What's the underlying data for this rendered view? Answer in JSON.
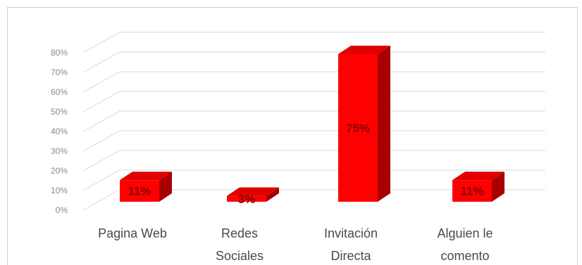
{
  "chart_data": {
    "type": "bar",
    "categories": [
      [
        "Pagina Web"
      ],
      [
        "Redes",
        "Sociales"
      ],
      [
        "Invitación",
        "Directa"
      ],
      [
        "Alguien le",
        "comento"
      ]
    ],
    "values": [
      11,
      3,
      75,
      11
    ],
    "data_labels": [
      "11%",
      "3%",
      "75%",
      "11%"
    ],
    "y_ticks": [
      "0%",
      "10%",
      "20%",
      "30%",
      "40%",
      "50%",
      "60%",
      "70%",
      "80%"
    ],
    "ylim": [
      0,
      80
    ],
    "grid": true,
    "legend": "none",
    "style": "3d-column",
    "colors": {
      "front": "#ff0000",
      "top": "#e00000",
      "side": "#a80000",
      "grid": "#d9d9d9",
      "label": "#8a0000"
    }
  }
}
